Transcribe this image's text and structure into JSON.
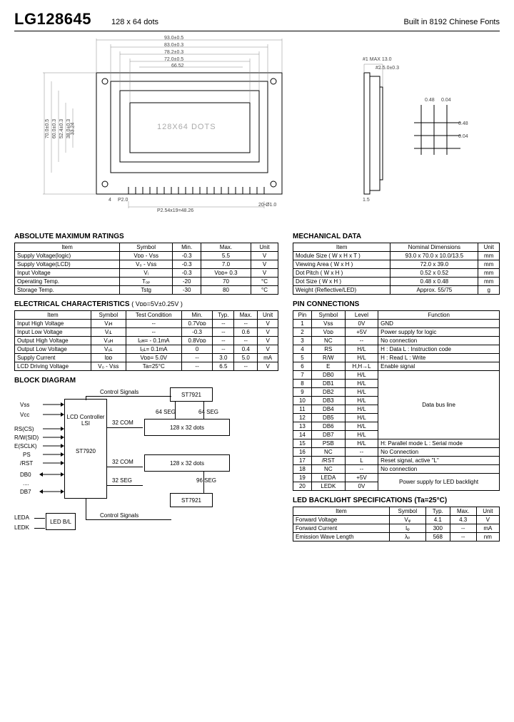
{
  "header": {
    "title": "LG128645",
    "subtitle": "128 x 64 dots",
    "topright": "Built in 8192 Chinese Fonts"
  },
  "drawing": {
    "top_dims": [
      "93.0±0.5",
      "83.0±0.3",
      "78.2±0.3",
      "72.0±0.5",
      "66.52"
    ],
    "center_text": "128X64 DOTS",
    "left_dims": [
      "70.0±0.5",
      "60.0±0.3",
      "52.4±0.3",
      "38.0±0.3",
      "33.24"
    ],
    "bottom_left": "4",
    "bottom_left2": "P2.0",
    "bottom_center": "P2.54x19=48.26",
    "bottom_right": "20-Ø1.0",
    "side_top": "MAX 13.0",
    "side_top2": "5.0±0.3",
    "side_bottom": "1.5",
    "grid_h": [
      "0.48",
      "0.04"
    ],
    "grid_v": [
      "0.48",
      "0.04"
    ]
  },
  "abs_max": {
    "title": "ABSOLUTE MAXIMUM RATINGS",
    "columns": [
      "Item",
      "Symbol",
      "Min.",
      "Max.",
      "Unit"
    ],
    "rows": [
      [
        "Supply Voltage(logic)",
        "Vᴅᴅ - Vss",
        "-0.3",
        "5.5",
        "V"
      ],
      [
        "Supply Voltage(LCD)",
        "V₀ - Vss",
        "-0.3",
        "7.0",
        "V"
      ],
      [
        "Input Voltage",
        "Vᵢ",
        "-0.3",
        "Vᴅᴅ+ 0.3",
        "V"
      ],
      [
        "Operating Temp.",
        "Tₒₚ",
        "-20",
        "70",
        "°C"
      ],
      [
        "Storage Temp.",
        "Tstg",
        "-30",
        "80",
        "°C"
      ]
    ]
  },
  "mech": {
    "title": "MECHANICAL DATA",
    "columns": [
      "Item",
      "Nominal Dimensions",
      "Unit"
    ],
    "rows": [
      [
        "Module Size ( W x H x T )",
        "93.0 x 70.0 x 10.0/13.5",
        "mm"
      ],
      [
        "Viewing Area ( W x H )",
        "72.0 x 39.0",
        "mm"
      ],
      [
        "Dot Pitch ( W x H )",
        "0.52 x 0.52",
        "mm"
      ],
      [
        "Dot Size ( W x H )",
        "0.48 x 0.48",
        "mm"
      ],
      [
        "Weight (Reflective/LED)",
        "Approx.  55/75",
        "g"
      ]
    ]
  },
  "elec": {
    "title": "ELECTRICAL CHARACTERISTICS",
    "cond": "( Vᴅᴅ=5V±0.25V )",
    "columns": [
      "Item",
      "Symbol",
      "Test Condition",
      "Min.",
      "Typ.",
      "Max.",
      "Unit"
    ],
    "rows": [
      [
        "Input High Voltage",
        "Vᵢʜ",
        "--",
        "0.7Vᴅᴅ",
        "--",
        "--",
        "V"
      ],
      [
        "Input Low Voltage",
        "Vᵢʟ",
        "--",
        "-0.3",
        "--",
        "0.6",
        "V"
      ],
      [
        "Output High Voltage",
        "Vₒʜ",
        "Iₒʜ= - 0.1mA",
        "0.8Vᴅᴅ",
        "--",
        "--",
        "V"
      ],
      [
        "Output Low Voltage",
        "Vₒʟ",
        "Iₒʟ=  0.1mA",
        "0",
        "--",
        "0.4",
        "V"
      ],
      [
        "Supply Current",
        "Iᴅᴅ",
        "Vᴅᴅ= 5.0V",
        "--",
        "3.0",
        "5.0",
        "mA"
      ],
      [
        "LCD Driving Voltage",
        "V₀ - Vss",
        "Ta=25°C",
        "--",
        "6.5",
        "--",
        "V"
      ]
    ]
  },
  "pins": {
    "title": "PIN CONNECTIONS",
    "columns": [
      "Pin",
      "Symbol",
      "Level",
      "Function"
    ],
    "rows": [
      [
        "1",
        "Vss",
        "0V",
        "GND"
      ],
      [
        "2",
        "Vᴅᴅ",
        "+5V",
        "Power supply for logic"
      ],
      [
        "3",
        "NC",
        "--",
        "No connection"
      ],
      [
        "4",
        "RS",
        "H/L",
        "H : Data   L : Instruction code"
      ],
      [
        "5",
        "R/W",
        "H/L",
        "H : Read   L : Write"
      ],
      [
        "6",
        "E",
        "H,H→L",
        "Enable signal"
      ],
      [
        "7",
        "DB0",
        "H/L",
        ""
      ],
      [
        "8",
        "DB1",
        "H/L",
        ""
      ],
      [
        "9",
        "DB2",
        "H/L",
        ""
      ],
      [
        "10",
        "DB3",
        "H/L",
        ""
      ],
      [
        "11",
        "DB4",
        "H/L",
        ""
      ],
      [
        "12",
        "DB5",
        "H/L",
        ""
      ],
      [
        "13",
        "DB6",
        "H/L",
        ""
      ],
      [
        "14",
        "DB7",
        "H/L",
        ""
      ],
      [
        "15",
        "PSB",
        "H/L",
        "H: Parallel mode  L : Serial mode"
      ],
      [
        "16",
        "NC",
        "--",
        "No Connection"
      ],
      [
        "17",
        "/RST",
        "L",
        "Reset signal, active \"L\""
      ],
      [
        "18",
        "NC",
        "--",
        "No connection"
      ],
      [
        "19",
        "LEDA",
        "+5V",
        ""
      ],
      [
        "20",
        "LEDK",
        "0V",
        ""
      ]
    ],
    "databus_label": "Data bus line",
    "backlight_label": "Power supply for LED backlight"
  },
  "block": {
    "title": "BLOCK DIAGRAM",
    "signals": [
      "Vss",
      "Vcc",
      "RS(CS)",
      "R/W(SID)",
      "E(SCLK)",
      "PS",
      "/RST",
      "DB0",
      "....",
      "DB7"
    ],
    "leda": "LEDA",
    "ledk": "LEDK",
    "ledbl": "LED B/L",
    "controller": "LCD Controller LSI",
    "st7920": "ST7920",
    "st7921a": "ST7921",
    "st7921b": "ST7921",
    "ctrlsig": "Control Signals",
    "com32a": "32 COM",
    "com32b": "32 COM",
    "seg32": "32 SEG",
    "seg64a": "64 SEG",
    "seg64b": "64 SEG",
    "seg96": "96 SEG",
    "dots1": "128 x 32 dots",
    "dots2": "128 x 32 dots"
  },
  "ledspec": {
    "title": "LED BACKLIGHT SPECIFICATIONS (Ta=25°C)",
    "columns": [
      "Item",
      "Symbol",
      "Typ.",
      "Max.",
      "Unit"
    ],
    "rows": [
      [
        "Forward Voltage",
        "Vᵩ",
        "4.1",
        "4.3",
        "V"
      ],
      [
        "Forward Current",
        "Iᵩ",
        "300",
        "--",
        "mA"
      ],
      [
        "Emission Wave Length",
        "λₚ",
        "568",
        "--",
        "nm"
      ]
    ]
  }
}
